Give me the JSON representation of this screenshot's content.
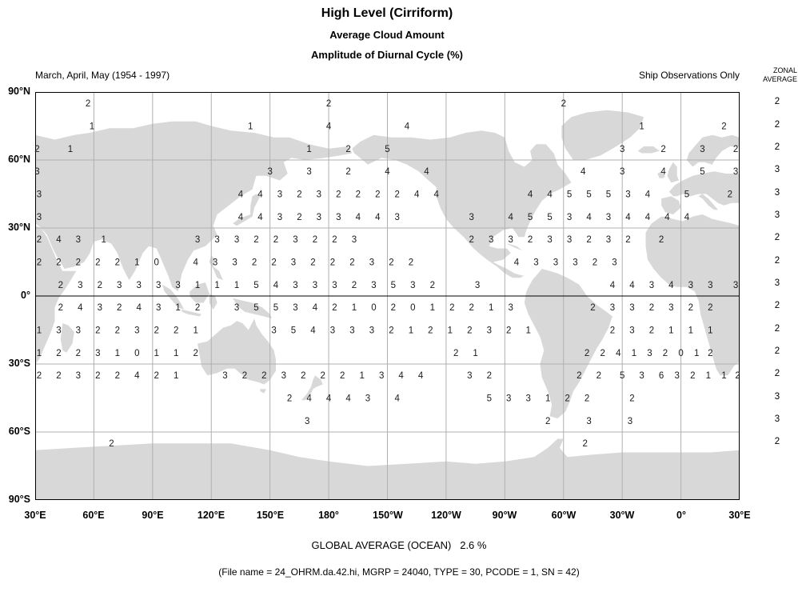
{
  "colors": {
    "land": "#d8d8d8",
    "grid": "#b0b0b0",
    "border": "#000000",
    "equator": "#000000",
    "value_text": "#1a1a1a"
  },
  "chart_data": {
    "type": "map-grid",
    "title": "High Level (Cirriform)",
    "subtitle1": "Average Cloud Amount",
    "subtitle2": "Amplitude of Diurnal Cycle (%)",
    "season_label": "March, April, May (1954 - 1997)",
    "source_label": "Ship Observations Only",
    "zonal_header": [
      "ZONAL",
      "AVERAGE"
    ],
    "global_average_label": "GLOBAL AVERAGE (OCEAN)   2.6 %",
    "file_info_label": "(File name = 24_OHRM.da.42.hi, MGRP = 24040, TYPE = 30, PCODE = 1, SN = 42)",
    "units": "%",
    "value_range": [
      0,
      6
    ],
    "grid": true,
    "projection": {
      "lon_min": 30,
      "lon_max": 390,
      "lat_min": -90,
      "lat_max": 90
    },
    "lat_ticks": [
      {
        "label": "90°N",
        "lat": 90
      },
      {
        "label": "60°N",
        "lat": 60
      },
      {
        "label": "30°N",
        "lat": 30
      },
      {
        "label": "0°",
        "lat": 0
      },
      {
        "label": "30°S",
        "lat": -30
      },
      {
        "label": "60°S",
        "lat": -60
      },
      {
        "label": "90°S",
        "lat": -90
      }
    ],
    "lon_ticks": [
      {
        "label": "30°E",
        "lon": 30
      },
      {
        "label": "60°E",
        "lon": 60
      },
      {
        "label": "90°E",
        "lon": 90
      },
      {
        "label": "120°E",
        "lon": 120
      },
      {
        "label": "150°E",
        "lon": 150
      },
      {
        "label": "180°",
        "lon": 180
      },
      {
        "label": "150°W",
        "lon": 210
      },
      {
        "label": "120°W",
        "lon": 240
      },
      {
        "label": "90°W",
        "lon": 270
      },
      {
        "label": "60°W",
        "lon": 300
      },
      {
        "label": "30°W",
        "lon": 330
      },
      {
        "label": "0°",
        "lon": 360
      },
      {
        "label": "30°E",
        "lon": 390
      }
    ],
    "rows": [
      {
        "lat": 85,
        "zonal": 2,
        "points": [
          [
            57,
            2
          ],
          [
            180,
            2
          ],
          [
            300,
            2
          ]
        ]
      },
      {
        "lat": 75,
        "zonal": 2,
        "points": [
          [
            59,
            1
          ],
          [
            140,
            1
          ],
          [
            180,
            4
          ],
          [
            220,
            4
          ],
          [
            340,
            1
          ],
          [
            382,
            2
          ]
        ]
      },
      {
        "lat": 65,
        "zonal": 2,
        "points": [
          [
            31,
            2
          ],
          [
            48,
            1
          ],
          [
            170,
            1
          ],
          [
            190,
            2
          ],
          [
            210,
            5
          ],
          [
            330,
            3
          ],
          [
            351,
            2
          ],
          [
            371,
            3
          ],
          [
            388,
            2
          ]
        ]
      },
      {
        "lat": 55,
        "zonal": 3,
        "points": [
          [
            31,
            3
          ],
          [
            150,
            3
          ],
          [
            170,
            3
          ],
          [
            190,
            2
          ],
          [
            210,
            4
          ],
          [
            230,
            4
          ],
          [
            310,
            4
          ],
          [
            330,
            3
          ],
          [
            351,
            4
          ],
          [
            371,
            5
          ],
          [
            388,
            3
          ]
        ]
      },
      {
        "lat": 45,
        "zonal": 3,
        "points": [
          [
            32,
            3
          ],
          [
            135,
            4
          ],
          [
            145,
            4
          ],
          [
            155,
            3
          ],
          [
            165,
            2
          ],
          [
            175,
            3
          ],
          [
            185,
            2
          ],
          [
            195,
            2
          ],
          [
            205,
            2
          ],
          [
            215,
            2
          ],
          [
            225,
            4
          ],
          [
            235,
            4
          ],
          [
            283,
            4
          ],
          [
            293,
            4
          ],
          [
            303,
            5
          ],
          [
            313,
            5
          ],
          [
            323,
            5
          ],
          [
            333,
            3
          ],
          [
            343,
            4
          ],
          [
            363,
            5
          ],
          [
            385,
            2
          ]
        ]
      },
      {
        "lat": 35,
        "zonal": 3,
        "points": [
          [
            32,
            3
          ],
          [
            135,
            4
          ],
          [
            145,
            4
          ],
          [
            155,
            3
          ],
          [
            165,
            2
          ],
          [
            175,
            3
          ],
          [
            185,
            3
          ],
          [
            195,
            4
          ],
          [
            205,
            4
          ],
          [
            215,
            3
          ],
          [
            253,
            3
          ],
          [
            273,
            4
          ],
          [
            283,
            5
          ],
          [
            293,
            5
          ],
          [
            303,
            3
          ],
          [
            313,
            4
          ],
          [
            323,
            3
          ],
          [
            333,
            4
          ],
          [
            343,
            4
          ],
          [
            353,
            4
          ],
          [
            363,
            4
          ]
        ]
      },
      {
        "lat": 25,
        "zonal": 2,
        "points": [
          [
            32,
            2
          ],
          [
            42,
            4
          ],
          [
            52,
            3
          ],
          [
            65,
            1
          ],
          [
            113,
            3
          ],
          [
            123,
            3
          ],
          [
            133,
            3
          ],
          [
            143,
            2
          ],
          [
            153,
            2
          ],
          [
            163,
            3
          ],
          [
            173,
            2
          ],
          [
            183,
            2
          ],
          [
            193,
            3
          ],
          [
            253,
            2
          ],
          [
            263,
            3
          ],
          [
            273,
            3
          ],
          [
            283,
            2
          ],
          [
            293,
            3
          ],
          [
            303,
            3
          ],
          [
            313,
            2
          ],
          [
            323,
            3
          ],
          [
            333,
            2
          ],
          [
            350,
            2
          ]
        ]
      },
      {
        "lat": 15,
        "zonal": 2,
        "points": [
          [
            32,
            2
          ],
          [
            42,
            2
          ],
          [
            52,
            2
          ],
          [
            62,
            2
          ],
          [
            72,
            2
          ],
          [
            82,
            1
          ],
          [
            92,
            0
          ],
          [
            112,
            4
          ],
          [
            122,
            3
          ],
          [
            132,
            3
          ],
          [
            142,
            2
          ],
          [
            152,
            2
          ],
          [
            162,
            3
          ],
          [
            172,
            2
          ],
          [
            182,
            2
          ],
          [
            192,
            2
          ],
          [
            202,
            3
          ],
          [
            212,
            2
          ],
          [
            222,
            2
          ],
          [
            276,
            4
          ],
          [
            286,
            3
          ],
          [
            296,
            3
          ],
          [
            306,
            3
          ],
          [
            316,
            2
          ],
          [
            326,
            3
          ]
        ]
      },
      {
        "lat": 5,
        "zonal": 3,
        "points": [
          [
            43,
            2
          ],
          [
            53,
            3
          ],
          [
            63,
            2
          ],
          [
            73,
            3
          ],
          [
            83,
            3
          ],
          [
            93,
            3
          ],
          [
            103,
            3
          ],
          [
            113,
            1
          ],
          [
            123,
            1
          ],
          [
            133,
            1
          ],
          [
            143,
            5
          ],
          [
            153,
            4
          ],
          [
            163,
            3
          ],
          [
            173,
            3
          ],
          [
            183,
            3
          ],
          [
            193,
            2
          ],
          [
            203,
            3
          ],
          [
            213,
            5
          ],
          [
            223,
            3
          ],
          [
            233,
            2
          ],
          [
            256,
            3
          ],
          [
            325,
            4
          ],
          [
            335,
            4
          ],
          [
            345,
            3
          ],
          [
            355,
            4
          ],
          [
            365,
            3
          ],
          [
            375,
            3
          ],
          [
            388,
            3
          ]
        ]
      },
      {
        "lat": -5,
        "zonal": 2,
        "points": [
          [
            43,
            2
          ],
          [
            53,
            4
          ],
          [
            63,
            3
          ],
          [
            73,
            2
          ],
          [
            83,
            4
          ],
          [
            93,
            3
          ],
          [
            103,
            1
          ],
          [
            113,
            2
          ],
          [
            133,
            3
          ],
          [
            143,
            5
          ],
          [
            153,
            5
          ],
          [
            163,
            3
          ],
          [
            173,
            4
          ],
          [
            183,
            2
          ],
          [
            193,
            1
          ],
          [
            203,
            0
          ],
          [
            213,
            2
          ],
          [
            223,
            0
          ],
          [
            233,
            1
          ],
          [
            243,
            2
          ],
          [
            253,
            2
          ],
          [
            263,
            1
          ],
          [
            273,
            3
          ],
          [
            315,
            2
          ],
          [
            325,
            3
          ],
          [
            335,
            3
          ],
          [
            345,
            2
          ],
          [
            355,
            3
          ],
          [
            365,
            2
          ],
          [
            375,
            2
          ]
        ]
      },
      {
        "lat": -15,
        "zonal": 2,
        "points": [
          [
            32,
            1
          ],
          [
            42,
            3
          ],
          [
            52,
            3
          ],
          [
            62,
            2
          ],
          [
            72,
            2
          ],
          [
            82,
            3
          ],
          [
            92,
            2
          ],
          [
            102,
            2
          ],
          [
            112,
            1
          ],
          [
            152,
            3
          ],
          [
            162,
            5
          ],
          [
            172,
            4
          ],
          [
            182,
            3
          ],
          [
            192,
            3
          ],
          [
            202,
            3
          ],
          [
            212,
            2
          ],
          [
            222,
            1
          ],
          [
            232,
            2
          ],
          [
            242,
            1
          ],
          [
            252,
            2
          ],
          [
            262,
            3
          ],
          [
            272,
            2
          ],
          [
            282,
            1
          ],
          [
            325,
            2
          ],
          [
            335,
            3
          ],
          [
            345,
            2
          ],
          [
            355,
            1
          ],
          [
            365,
            1
          ],
          [
            375,
            1
          ]
        ]
      },
      {
        "lat": -25,
        "zonal": 2,
        "points": [
          [
            32,
            1
          ],
          [
            42,
            2
          ],
          [
            52,
            2
          ],
          [
            62,
            3
          ],
          [
            72,
            1
          ],
          [
            82,
            0
          ],
          [
            92,
            1
          ],
          [
            102,
            1
          ],
          [
            112,
            2
          ],
          [
            245,
            2
          ],
          [
            255,
            1
          ],
          [
            312,
            2
          ],
          [
            320,
            2
          ],
          [
            328,
            4
          ],
          [
            336,
            1
          ],
          [
            344,
            3
          ],
          [
            352,
            2
          ],
          [
            360,
            0
          ],
          [
            368,
            1
          ],
          [
            375,
            2
          ]
        ]
      },
      {
        "lat": -35,
        "zonal": 2,
        "points": [
          [
            32,
            2
          ],
          [
            42,
            2
          ],
          [
            52,
            3
          ],
          [
            62,
            2
          ],
          [
            72,
            2
          ],
          [
            82,
            4
          ],
          [
            92,
            2
          ],
          [
            102,
            1
          ],
          [
            127,
            3
          ],
          [
            137,
            2
          ],
          [
            147,
            2
          ],
          [
            157,
            3
          ],
          [
            167,
            2
          ],
          [
            177,
            2
          ],
          [
            187,
            2
          ],
          [
            197,
            1
          ],
          [
            207,
            3
          ],
          [
            217,
            4
          ],
          [
            227,
            4
          ],
          [
            252,
            3
          ],
          [
            262,
            2
          ],
          [
            308,
            2
          ],
          [
            318,
            2
          ],
          [
            330,
            5
          ],
          [
            340,
            3
          ],
          [
            350,
            6
          ],
          [
            358,
            3
          ],
          [
            366,
            2
          ],
          [
            374,
            1
          ],
          [
            382,
            1
          ],
          [
            389,
            2
          ]
        ]
      },
      {
        "lat": -45,
        "zonal": 3,
        "points": [
          [
            160,
            2
          ],
          [
            170,
            4
          ],
          [
            180,
            4
          ],
          [
            190,
            4
          ],
          [
            200,
            3
          ],
          [
            215,
            4
          ],
          [
            262,
            5
          ],
          [
            272,
            3
          ],
          [
            282,
            3
          ],
          [
            292,
            1
          ],
          [
            302,
            2
          ],
          [
            312,
            2
          ],
          [
            335,
            2
          ]
        ]
      },
      {
        "lat": -55,
        "zonal": 3,
        "points": [
          [
            169,
            3
          ],
          [
            292,
            2
          ],
          [
            313,
            3
          ],
          [
            334,
            3
          ]
        ]
      },
      {
        "lat": -65,
        "zonal": 2,
        "points": [
          [
            69,
            2
          ],
          [
            311,
            2
          ]
        ]
      }
    ]
  }
}
